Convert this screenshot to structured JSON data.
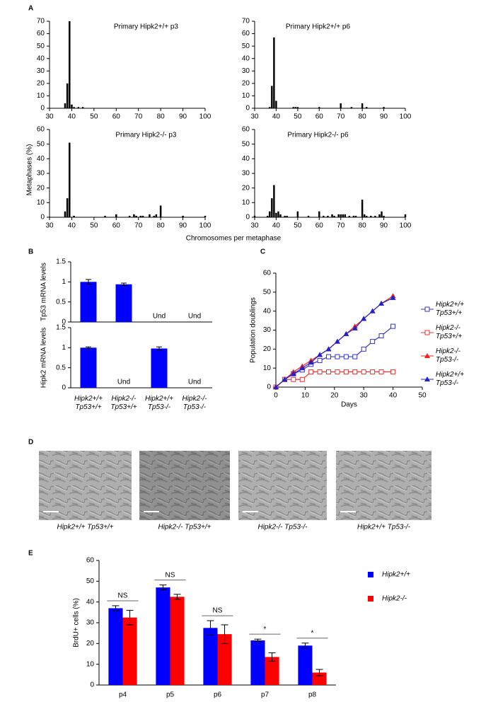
{
  "figure": {
    "panel_labels": [
      "A",
      "B",
      "C",
      "D",
      "E"
    ],
    "panel_a": {
      "y_label": "Metaphases (%)",
      "x_label": "Chromosomes per metaphase"
    },
    "panel_d": {
      "captions": [
        "Hipk2+/+ Tp53+/+",
        "Hipk2-/- Tp53+/+",
        "Hipk2-/- Tp53-/-",
        "Hipk2+/+ Tp53-/-"
      ]
    }
  },
  "chart_data": [
    {
      "type": "bar",
      "title": "Primary Hipk2+/+ p3",
      "color": "#000000",
      "x": [
        37,
        38,
        39,
        40,
        41,
        43,
        45
      ],
      "values": [
        4,
        20,
        70,
        3,
        1,
        1,
        1
      ],
      "xlim": [
        30,
        100
      ],
      "xticks": [
        30,
        40,
        50,
        60,
        70,
        80,
        90,
        100
      ],
      "ylim": [
        0,
        70
      ],
      "yticks": [
        0,
        10,
        20,
        30,
        40,
        50,
        60,
        70
      ]
    },
    {
      "type": "bar",
      "title": "Primary Hipk2+/+ p6",
      "color": "#000000",
      "x": [
        37,
        38,
        39,
        40,
        48,
        49,
        50,
        60,
        70,
        75,
        80,
        82,
        90
      ],
      "values": [
        1,
        18,
        57,
        6,
        1,
        1,
        1,
        1,
        4,
        1,
        4,
        1,
        1
      ],
      "xlim": [
        30,
        100
      ],
      "xticks": [
        30,
        40,
        50,
        60,
        70,
        80,
        90,
        100
      ],
      "ylim": [
        0,
        70
      ],
      "yticks": [
        0,
        10,
        20,
        30,
        40,
        50,
        60,
        70
      ]
    },
    {
      "type": "bar",
      "title": "Primary Hipk2-/- p3",
      "color": "#000000",
      "x": [
        37,
        38,
        39,
        41,
        55,
        60,
        66,
        68,
        69,
        71,
        72,
        75,
        77,
        78,
        80,
        90,
        100
      ],
      "values": [
        4,
        13,
        51,
        1,
        1,
        2,
        1,
        2,
        1,
        1,
        1,
        2,
        1,
        2,
        8,
        1,
        1
      ],
      "xlim": [
        30,
        100
      ],
      "xticks": [
        30,
        40,
        50,
        60,
        70,
        80,
        90,
        100
      ],
      "ylim": [
        0,
        60
      ],
      "yticks": [
        0,
        10,
        20,
        30,
        40,
        50,
        60
      ]
    },
    {
      "type": "bar",
      "title": "Primary Hipk2-/- p6",
      "color": "#000000",
      "x": [
        30,
        36,
        37,
        38,
        39,
        40,
        41,
        42,
        44,
        45,
        50,
        55,
        60,
        62,
        64,
        66,
        67,
        69,
        70,
        71,
        72,
        74,
        76,
        77,
        80,
        81,
        82,
        84,
        86,
        88,
        89,
        90,
        100
      ],
      "values": [
        1,
        1,
        4,
        13,
        22,
        3,
        4,
        2,
        1,
        1,
        4,
        1,
        4,
        1,
        1,
        2,
        1,
        2,
        2,
        2,
        2,
        1,
        1,
        1,
        12,
        2,
        1,
        1,
        1,
        2,
        4,
        1,
        2
      ],
      "xlim": [
        30,
        100
      ],
      "xticks": [
        30,
        40,
        50,
        60,
        70,
        80,
        90,
        100
      ],
      "ylim": [
        0,
        60
      ],
      "yticks": [
        0,
        10,
        20,
        30,
        40,
        50,
        60
      ]
    },
    {
      "type": "bar",
      "ylabel": "Tp53 mRNA levels",
      "color": "#0000ff",
      "categories": [
        null,
        null,
        null,
        null
      ],
      "values": [
        1.0,
        0.94,
        null,
        null
      ],
      "errors": [
        0.06,
        0.03,
        null,
        null
      ],
      "value_labels": [
        null,
        null,
        "Und",
        "Und"
      ],
      "ylim": [
        0,
        1.5
      ],
      "yticks": [
        0,
        0.5,
        1,
        1.5
      ]
    },
    {
      "type": "bar",
      "ylabel": "Hipk2 mRNA levels",
      "color": "#0000ff",
      "categories": [
        "Hipk2+/+ Tp53+/+",
        "Hipk2-/- Tp53+/+",
        "Hipk2+/+ Tp53-/-",
        "Hipk2-/- Tp53-/-"
      ],
      "values": [
        1.0,
        null,
        0.98,
        null
      ],
      "errors": [
        0.02,
        null,
        0.04,
        null
      ],
      "value_labels": [
        null,
        "Und",
        null,
        "Und"
      ],
      "ylim": [
        0,
        1.5
      ],
      "yticks": [
        0,
        0.5,
        1,
        1.5
      ]
    },
    {
      "type": "line",
      "xlabel": "Days",
      "ylabel": "Population doublings",
      "x": [
        0,
        3,
        6,
        9,
        12,
        15,
        18,
        21,
        24,
        27,
        30,
        33,
        36,
        40
      ],
      "series": [
        {
          "name": "Hipk2+/+ Tp53+/+",
          "color": "#3333cc",
          "marker": "square-open",
          "values": [
            0,
            4,
            7,
            9,
            12,
            14,
            16,
            16,
            16,
            16,
            20,
            24,
            27,
            32
          ]
        },
        {
          "name": "Hipk2-/- Tp53+/+",
          "color": "#ee3333",
          "marker": "square-open",
          "values": [
            0,
            4,
            4,
            4,
            8,
            8,
            8,
            8,
            8,
            8,
            8,
            8,
            8,
            8
          ]
        },
        {
          "name": "Hipk2-/- Tp53-/-",
          "color": "#ee2222",
          "marker": "triangle",
          "values": [
            0,
            4,
            8,
            11,
            14,
            17,
            20,
            24,
            28,
            32,
            36,
            40,
            44,
            48
          ]
        },
        {
          "name": "Hipk2+/+ Tp53-/-",
          "color": "#2222cc",
          "marker": "triangle",
          "values": [
            0,
            4,
            7,
            10,
            13,
            17,
            20,
            24,
            28,
            31,
            36,
            40,
            44,
            47
          ]
        }
      ],
      "xlim": [
        0,
        50
      ],
      "xticks": [
        0,
        10,
        20,
        30,
        40,
        50
      ],
      "ylim": [
        0,
        60
      ],
      "yticks": [
        0,
        10,
        20,
        30,
        40,
        50,
        60
      ]
    },
    {
      "type": "bar",
      "ylabel": "BrdU+ cells (%)",
      "categories": [
        "p4",
        "p5",
        "p6",
        "p7",
        "p8"
      ],
      "series": [
        {
          "name": "Hipk2+/+",
          "color": "#0000ff",
          "values": [
            37,
            47,
            27.5,
            21.5,
            19
          ],
          "errors": [
            1.2,
            1.2,
            3.5,
            0.6,
            1.2
          ]
        },
        {
          "name": "Hipk2-/-",
          "color": "#ff0000",
          "values": [
            32.5,
            42.5,
            24.5,
            13.5,
            6
          ],
          "errors": [
            3.5,
            1.2,
            4.5,
            2,
            1.5
          ]
        }
      ],
      "significance": [
        "NS",
        "NS",
        "NS",
        "*",
        "*"
      ],
      "ylim": [
        0,
        60
      ],
      "yticks": [
        0,
        10,
        20,
        30,
        40,
        50,
        60
      ]
    }
  ]
}
